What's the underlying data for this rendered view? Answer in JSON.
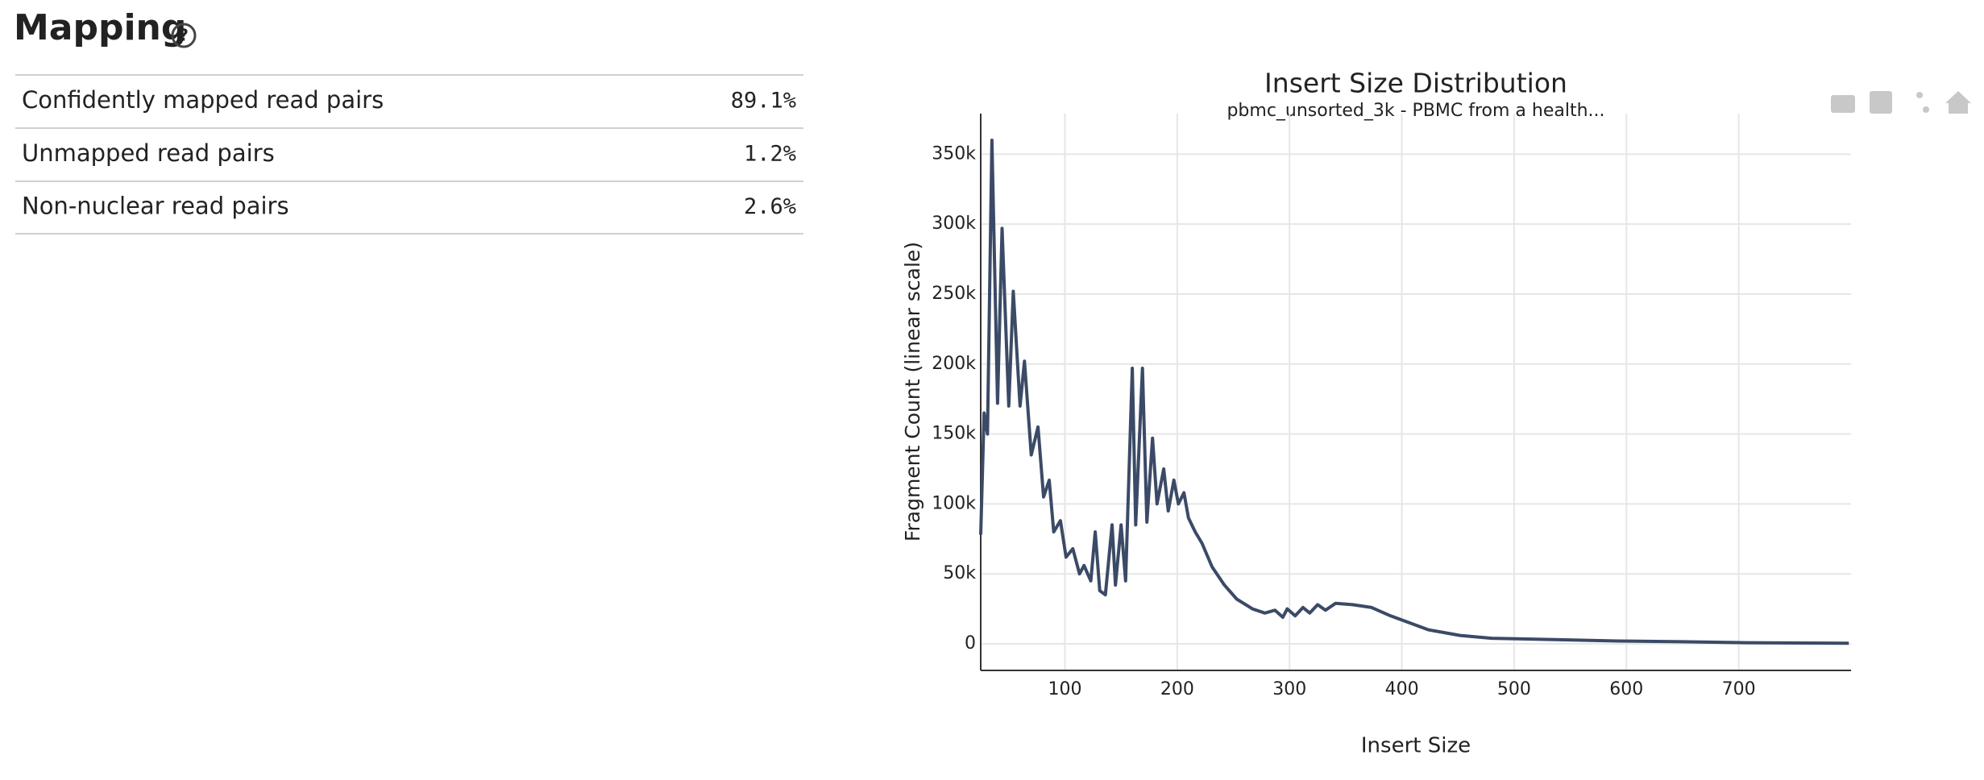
{
  "header": {
    "title": "Mapping"
  },
  "table": {
    "rows": [
      [
        "Confidently mapped read pairs",
        "89.1%"
      ],
      [
        "Unmapped read pairs",
        "1.2%"
      ],
      [
        "Non-nuclear read pairs",
        "2.6%"
      ]
    ]
  },
  "chart_data": {
    "type": "line",
    "title": "Insert Size Distribution",
    "subtitle": "pbmc_unsorted_3k - PBMC from a health...",
    "x_label": "Insert Size",
    "y_label": "Fragment Count (linear scale)",
    "x": [
      25,
      28,
      31,
      35,
      40,
      44,
      50,
      54,
      60,
      64,
      70,
      76,
      81,
      86,
      90,
      96,
      101,
      107,
      113,
      117,
      123,
      127,
      131,
      136,
      142,
      145,
      150,
      154,
      160,
      163,
      169,
      173,
      178,
      182,
      188,
      192,
      197,
      201,
      206,
      210,
      216,
      222,
      231,
      242,
      253,
      267,
      278,
      287,
      294,
      298,
      305,
      312,
      318,
      325,
      332,
      341,
      356,
      373,
      390,
      424,
      452,
      480,
      536,
      592,
      649,
      705,
      798
    ],
    "series": [
      {
        "name": "pbmc_unsorted_3k",
        "color": "#3b4a66",
        "values": [
          78000,
          165000,
          150000,
          360000,
          172000,
          297000,
          170000,
          252000,
          170000,
          202000,
          135000,
          155000,
          105000,
          117000,
          80000,
          88000,
          62000,
          68000,
          50000,
          56000,
          45000,
          80000,
          38000,
          35000,
          85000,
          42000,
          85000,
          45000,
          197000,
          85000,
          197000,
          87000,
          147000,
          100000,
          125000,
          95000,
          117000,
          100000,
          108000,
          90000,
          80000,
          72000,
          55000,
          42000,
          32000,
          25000,
          22000,
          24000,
          19000,
          25000,
          20000,
          26000,
          22000,
          28000,
          24000,
          29000,
          28000,
          26000,
          20000,
          10000,
          6000,
          4000,
          3000,
          2000,
          1500,
          800,
          400
        ]
      }
    ],
    "xlim": [
      25,
      800
    ],
    "ylim": [
      -19000,
      379000
    ],
    "xticks": [
      100,
      200,
      300,
      400,
      500,
      600,
      700
    ],
    "yticks": [
      0,
      {
        "value": 50000,
        "label": "50k"
      },
      {
        "value": 100000,
        "label": "100k"
      },
      {
        "value": 150000,
        "label": "150k"
      },
      {
        "value": 200000,
        "label": "200k"
      },
      {
        "value": 250000,
        "label": "250k"
      },
      {
        "value": 300000,
        "label": "300k"
      },
      {
        "value": 350000,
        "label": "350k"
      }
    ],
    "grid": true
  }
}
